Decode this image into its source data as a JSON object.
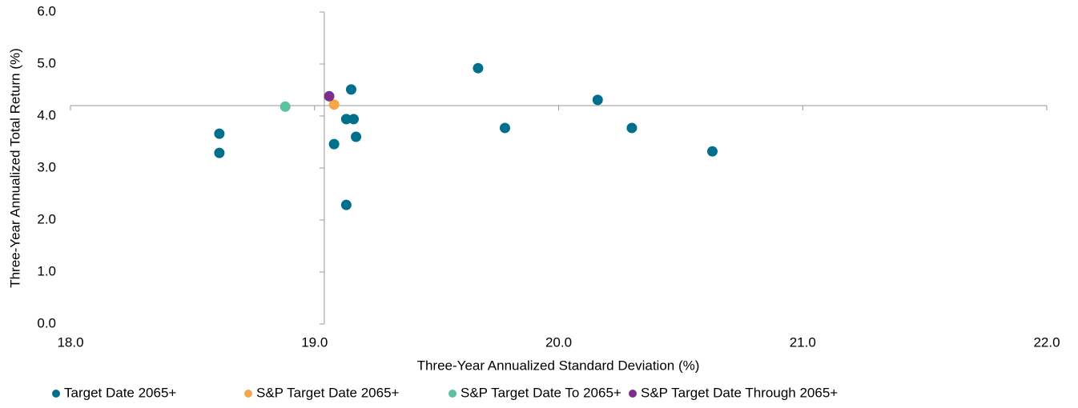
{
  "chart_data": {
    "type": "scatter",
    "x_label": "Three-Year Annualized Standard Deviation (%)",
    "y_label": "Three-Year Annualized Total Return (%)",
    "xlim": [
      18,
      22
    ],
    "xticks": [
      {
        "value": 18,
        "label": "18.0"
      },
      {
        "value": 19,
        "label": "19.0"
      },
      {
        "value": 20,
        "label": "20.0"
      },
      {
        "value": 21,
        "label": "21.0"
      },
      {
        "value": 22,
        "label": "22.0"
      }
    ],
    "ylim": [
      0,
      6
    ],
    "yticks": [
      {
        "value": 0,
        "label": "0.0"
      },
      {
        "value": 1,
        "label": "1.0"
      },
      {
        "value": 2,
        "label": "2.0"
      },
      {
        "value": 3,
        "label": "3.0"
      },
      {
        "value": 4,
        "label": "4.0"
      },
      {
        "value": 5,
        "label": "5.0"
      },
      {
        "value": 6,
        "label": "6.0"
      }
    ],
    "y_axis_crosses_x_at": 19.04,
    "x_axis_crosses_y_at": 4.2,
    "legend": "bottom",
    "series": [
      {
        "name": "Target Date 2065+",
        "color": "#006f8c",
        "x": [
          18.61,
          18.61,
          19.08,
          19.15,
          19.13,
          19.16,
          19.17,
          19.13,
          19.67,
          19.78,
          20.16,
          20.3,
          20.63
        ],
        "values": [
          3.66,
          3.29,
          3.46,
          4.51,
          3.94,
          3.94,
          3.6,
          2.29,
          4.92,
          3.77,
          4.31,
          3.77,
          3.32
        ]
      },
      {
        "name": "S&P Target Date 2065+",
        "color": "#f5a54a",
        "x": [
          19.08
        ],
        "values": [
          4.22
        ]
      },
      {
        "name": "S&P Target Date To 2065+",
        "color": "#5cc1a0",
        "x": [
          18.88
        ],
        "values": [
          4.18
        ]
      },
      {
        "name": "S&P Target Date Through 2065+",
        "color": "#7b2f8b",
        "x": [
          19.06
        ],
        "values": [
          4.38
        ]
      }
    ]
  }
}
